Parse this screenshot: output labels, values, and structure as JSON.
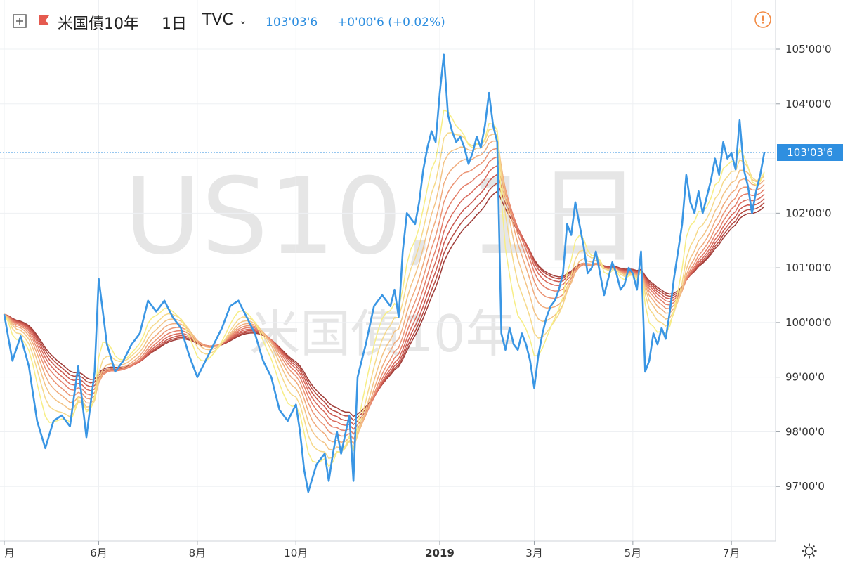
{
  "header": {
    "symbol_name": "米国債10年",
    "interval": "1日",
    "exchange": "TVC",
    "last_price": "103'03'6",
    "change": "+0'00'6 (+0.02%)",
    "alert_symbol": "!"
  },
  "watermark": {
    "main": "US10, 1日",
    "sub": "米国債10年"
  },
  "price_tag": "103'03'6",
  "colors": {
    "price_line": "#3a96e4",
    "accent": "#2f8fe0",
    "ribbon": [
      "#f7ee86",
      "#f6d98a",
      "#f3c385",
      "#f0ab7c",
      "#eb9474",
      "#e47e69",
      "#d96a5c",
      "#ca574e",
      "#b64a42",
      "#9e3b37"
    ],
    "alert": "#f28b45"
  },
  "chart_data": {
    "type": "line",
    "title": "",
    "xlabel": "",
    "ylabel": "",
    "y_tick_labels": [
      "105'00'0",
      "104'00'0",
      "102'00'0",
      "101'00'0",
      "100'00'0",
      "99'00'0",
      "98'00'0",
      "97'00'0"
    ],
    "y_tick_values": [
      105,
      104,
      102,
      101,
      100,
      99,
      98,
      97
    ],
    "hidden_tick": {
      "label": "103'00'0",
      "value": 103
    },
    "ylim": [
      96.0,
      105.9
    ],
    "x_ticks": [
      {
        "label": "月",
        "idx": 0
      },
      {
        "label": "6月",
        "idx": 23
      },
      {
        "label": "8月",
        "idx": 47
      },
      {
        "label": "10月",
        "idx": 71
      },
      {
        "label": "2019",
        "idx": 106
      },
      {
        "label": "3月",
        "idx": 129
      },
      {
        "label": "5月",
        "idx": 153
      },
      {
        "label": "7月",
        "idx": 177
      }
    ],
    "n_points": 186,
    "last_price_value": 103.11,
    "price_series": {
      "name": "",
      "anchors": [
        [
          0,
          100.15
        ],
        [
          2,
          99.3
        ],
        [
          4,
          99.75
        ],
        [
          6,
          99.2
        ],
        [
          8,
          98.2
        ],
        [
          10,
          97.7
        ],
        [
          12,
          98.2
        ],
        [
          14,
          98.3
        ],
        [
          16,
          98.1
        ],
        [
          18,
          99.2
        ],
        [
          20,
          97.9
        ],
        [
          22,
          99.1
        ],
        [
          23,
          100.8
        ],
        [
          25,
          99.6
        ],
        [
          27,
          99.1
        ],
        [
          29,
          99.3
        ],
        [
          31,
          99.6
        ],
        [
          33,
          99.8
        ],
        [
          35,
          100.4
        ],
        [
          37,
          100.2
        ],
        [
          39,
          100.4
        ],
        [
          41,
          100.1
        ],
        [
          43,
          99.9
        ],
        [
          45,
          99.4
        ],
        [
          47,
          99.0
        ],
        [
          49,
          99.3
        ],
        [
          51,
          99.6
        ],
        [
          53,
          99.9
        ],
        [
          55,
          100.3
        ],
        [
          57,
          100.4
        ],
        [
          59,
          100.1
        ],
        [
          61,
          99.8
        ],
        [
          63,
          99.3
        ],
        [
          65,
          99.0
        ],
        [
          67,
          98.4
        ],
        [
          69,
          98.2
        ],
        [
          71,
          98.5
        ],
        [
          72,
          98.0
        ],
        [
          73,
          97.3
        ],
        [
          74,
          96.9
        ],
        [
          76,
          97.4
        ],
        [
          78,
          97.6
        ],
        [
          79,
          97.1
        ],
        [
          80,
          97.6
        ],
        [
          81,
          98.0
        ],
        [
          82,
          97.6
        ],
        [
          84,
          98.3
        ],
        [
          85,
          97.1
        ],
        [
          86,
          99.0
        ],
        [
          88,
          99.6
        ],
        [
          90,
          100.3
        ],
        [
          92,
          100.5
        ],
        [
          94,
          100.3
        ],
        [
          95,
          100.6
        ],
        [
          96,
          100.1
        ],
        [
          97,
          101.3
        ],
        [
          98,
          102.0
        ],
        [
          100,
          101.8
        ],
        [
          101,
          102.2
        ],
        [
          102,
          102.8
        ],
        [
          103,
          103.2
        ],
        [
          104,
          103.5
        ],
        [
          105,
          103.3
        ],
        [
          106,
          104.2
        ],
        [
          107,
          104.9
        ],
        [
          108,
          103.8
        ],
        [
          109,
          103.5
        ],
        [
          110,
          103.3
        ],
        [
          111,
          103.4
        ],
        [
          112,
          103.2
        ],
        [
          113,
          102.9
        ],
        [
          114,
          103.1
        ],
        [
          115,
          103.4
        ],
        [
          116,
          103.2
        ],
        [
          117,
          103.6
        ],
        [
          118,
          104.2
        ],
        [
          119,
          103.6
        ],
        [
          120,
          103.3
        ],
        [
          120.4,
          99.4
        ],
        [
          121,
          99.8
        ],
        [
          122,
          99.5
        ],
        [
          123,
          99.9
        ],
        [
          124,
          99.6
        ],
        [
          125,
          99.5
        ],
        [
          126,
          99.8
        ],
        [
          127,
          99.6
        ],
        [
          128,
          99.3
        ],
        [
          129,
          98.8
        ],
        [
          130,
          99.4
        ],
        [
          131,
          99.8
        ],
        [
          132,
          100.1
        ],
        [
          133,
          100.3
        ],
        [
          134,
          100.4
        ],
        [
          135,
          100.6
        ],
        [
          136,
          100.9
        ],
        [
          137,
          101.8
        ],
        [
          138,
          101.6
        ],
        [
          139,
          102.2
        ],
        [
          140,
          101.8
        ],
        [
          141,
          101.4
        ],
        [
          142,
          100.9
        ],
        [
          143,
          101.0
        ],
        [
          144,
          101.3
        ],
        [
          145,
          100.9
        ],
        [
          146,
          100.5
        ],
        [
          147,
          100.8
        ],
        [
          148,
          101.1
        ],
        [
          149,
          100.9
        ],
        [
          150,
          100.6
        ],
        [
          151,
          100.7
        ],
        [
          152,
          101.0
        ],
        [
          153,
          100.9
        ],
        [
          154,
          100.6
        ],
        [
          155,
          101.3
        ],
        [
          156,
          99.1
        ],
        [
          157,
          99.3
        ],
        [
          158,
          99.8
        ],
        [
          159,
          99.6
        ],
        [
          160,
          99.9
        ],
        [
          161,
          99.7
        ],
        [
          162,
          100.2
        ],
        [
          163,
          100.8
        ],
        [
          164,
          101.3
        ],
        [
          165,
          101.8
        ],
        [
          166,
          102.7
        ],
        [
          167,
          102.2
        ],
        [
          168,
          102.0
        ],
        [
          169,
          102.4
        ],
        [
          170,
          102.0
        ],
        [
          171,
          102.3
        ],
        [
          172,
          102.6
        ],
        [
          173,
          103.0
        ],
        [
          174,
          102.7
        ],
        [
          175,
          103.3
        ],
        [
          176,
          103.0
        ],
        [
          177,
          103.1
        ],
        [
          178,
          102.8
        ],
        [
          179,
          103.7
        ],
        [
          180,
          102.8
        ],
        [
          181,
          102.5
        ],
        [
          182,
          102.0
        ],
        [
          183,
          102.4
        ],
        [
          184,
          102.7
        ],
        [
          185,
          103.11
        ]
      ]
    },
    "ribbon": {
      "name": "",
      "band_count": 10
    }
  }
}
